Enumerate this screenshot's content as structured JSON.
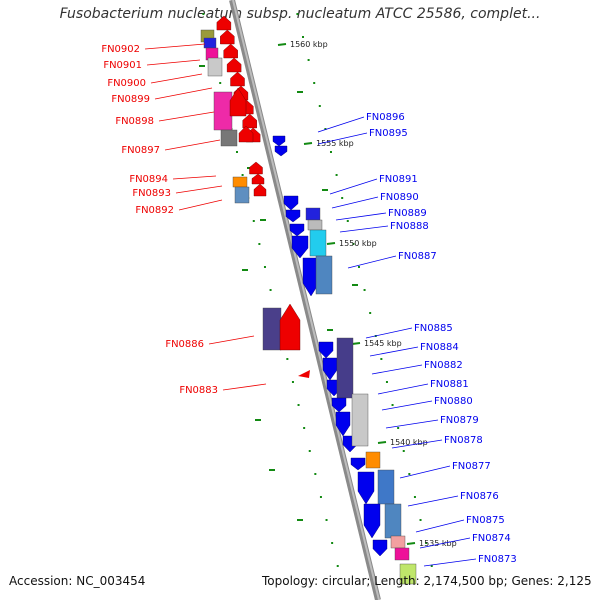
{
  "header": {
    "title": "Fusobacterium nucleatum subsp. nucleatum ATCC 25586, complet..."
  },
  "footer": {
    "accession": "Accession: NC_003454",
    "summary": "Topology: circular; Length: 2,174,500 bp; Genes: 2,125"
  },
  "colors": {
    "forward": "#0000ee",
    "reverse": "#ee0000",
    "ruler": "#138a13",
    "backbone": "#888888"
  },
  "ruler_labels": [
    "1560 kbp",
    "1555 kbp",
    "1550 kbp",
    "1545 kbp",
    "1540 kbp",
    "1535 kbp"
  ],
  "reverse_genes": [
    "FN0902",
    "FN0901",
    "FN0900",
    "FN0899",
    "FN0898",
    "FN0897",
    "FN0894",
    "FN0893",
    "FN0892",
    "FN0886",
    "FN0883"
  ],
  "forward_genes": [
    "FN0896",
    "FN0895",
    "FN0891",
    "FN0890",
    "FN0889",
    "FN0888",
    "FN0887",
    "FN0885",
    "FN0884",
    "FN0882",
    "FN0881",
    "FN0880",
    "FN0879",
    "FN0878",
    "FN0877",
    "FN0876",
    "FN0875",
    "FN0874",
    "FN0873"
  ]
}
